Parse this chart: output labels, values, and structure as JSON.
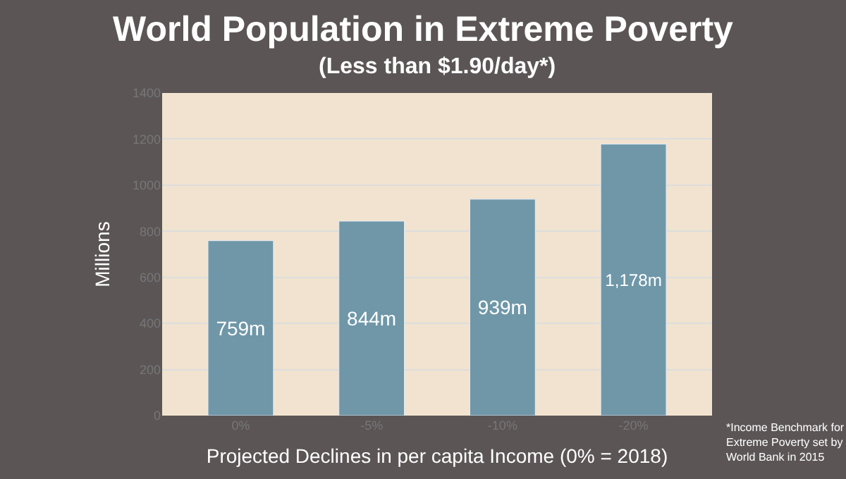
{
  "chart_data": {
    "type": "bar",
    "title": "World Population in Extreme Poverty",
    "subtitle": "(Less than $1.90/day*)",
    "xlabel": "Projected Declines in per capita Income (0% = 2018)",
    "ylabel": "Millions",
    "categories": [
      "0%",
      "-5%",
      "-10%",
      "-20%"
    ],
    "values": [
      759,
      844,
      939,
      1178
    ],
    "value_labels": [
      "759m",
      "844m",
      "939m",
      "1,178m"
    ],
    "color": "#6f97a8",
    "ylim": [
      0,
      1400
    ],
    "yticks": [
      0,
      200,
      400,
      600,
      800,
      1000,
      1200,
      1400
    ],
    "grid": "y",
    "annotations": [
      "*Income Benchmark for Extreme Poverty set by World Bank in 2015"
    ]
  }
}
